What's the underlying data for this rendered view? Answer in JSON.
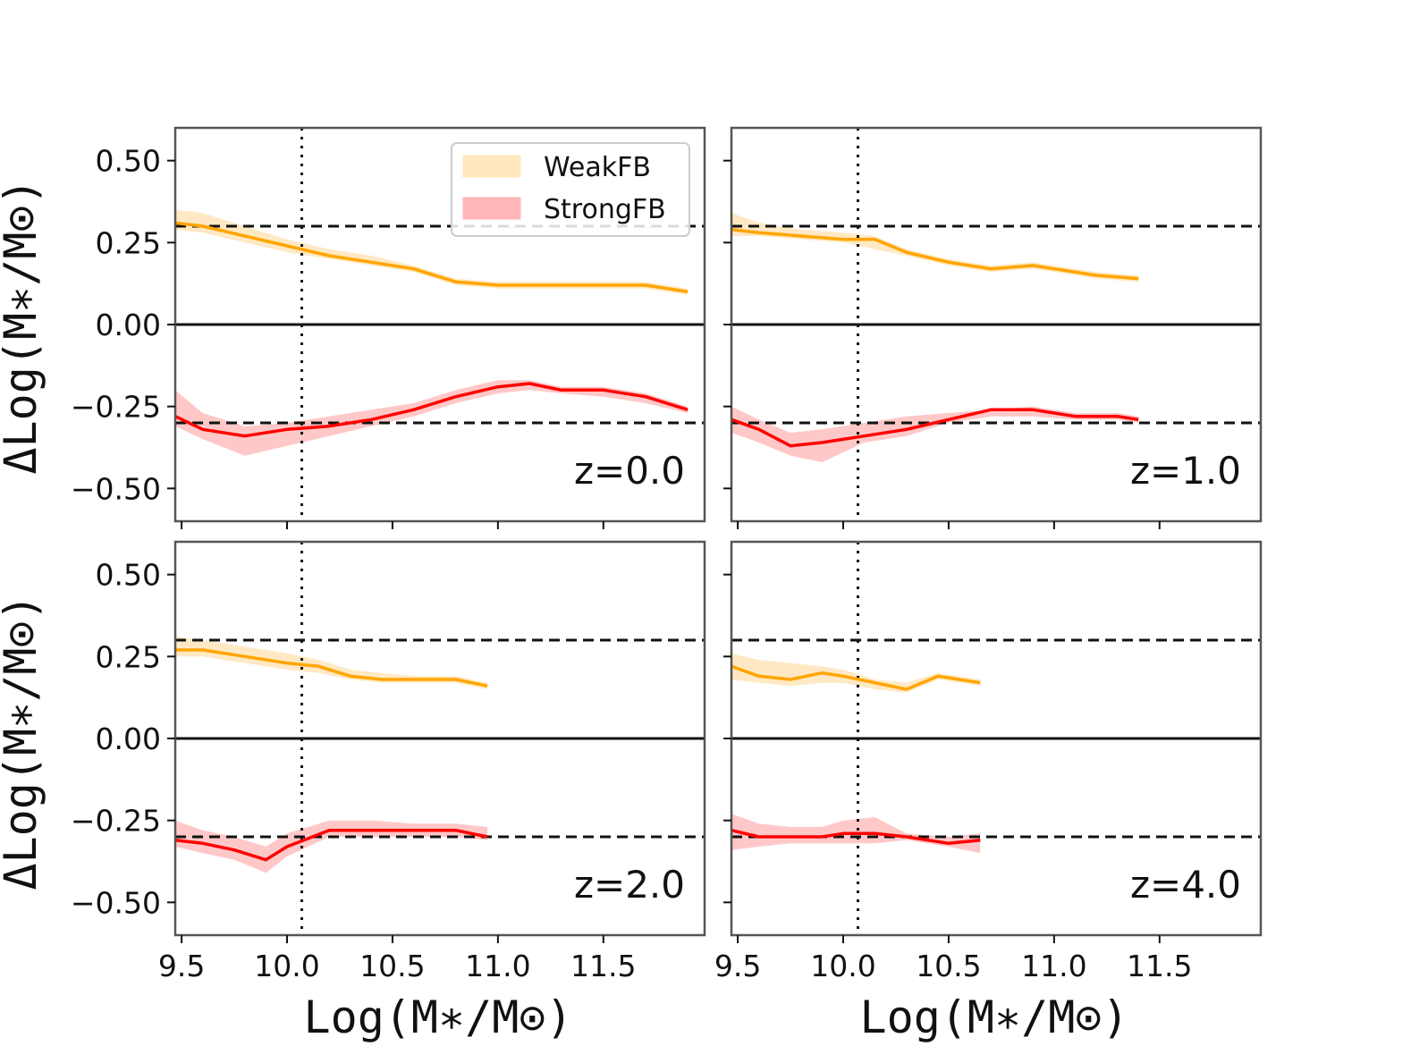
{
  "figure": {
    "ylabel": "ΔLog(M∗/M⊙)",
    "xlabel": "Log(M∗/M⊙)",
    "colors": {
      "weak_line": "#FFA500",
      "weak_band": "#FFE7BE",
      "strong_line": "#FF0000",
      "strong_band": "#FFB6B6"
    },
    "legend": {
      "entries": [
        "WeakFB",
        "StrongFB"
      ],
      "placement": "top-right of first panel"
    }
  },
  "chart_data": [
    {
      "type": "line",
      "annotation": "z=0.0",
      "xlim": [
        9.47,
        11.98
      ],
      "ylim": [
        -0.6,
        0.6
      ],
      "xticks": [
        "9.5",
        "10.0",
        "10.5",
        "11.0",
        "11.5"
      ],
      "yticks": [
        "0.50",
        "0.25",
        "0.00",
        "−0.25",
        "−0.50"
      ],
      "hlines": [
        0.3,
        0.0,
        -0.3
      ],
      "vline": 10.07,
      "series": [
        {
          "name": "WeakFB",
          "x": [
            9.47,
            9.6,
            9.8,
            10.0,
            10.2,
            10.4,
            10.6,
            10.8,
            11.0,
            11.2,
            11.4,
            11.6,
            11.7,
            11.9
          ],
          "y": [
            0.31,
            0.3,
            0.27,
            0.24,
            0.21,
            0.19,
            0.17,
            0.13,
            0.12,
            0.12,
            0.12,
            0.12,
            0.12,
            0.1
          ],
          "lower": [
            0.29,
            0.28,
            0.25,
            0.22,
            0.2,
            0.18,
            0.16,
            0.12,
            0.11,
            0.11,
            0.11,
            0.11,
            0.11,
            0.09
          ],
          "upper": [
            0.35,
            0.34,
            0.3,
            0.26,
            0.23,
            0.21,
            0.18,
            0.14,
            0.13,
            0.13,
            0.13,
            0.13,
            0.13,
            0.11
          ]
        },
        {
          "name": "StrongFB",
          "x": [
            9.47,
            9.6,
            9.8,
            10.0,
            10.2,
            10.4,
            10.6,
            10.8,
            11.0,
            11.15,
            11.3,
            11.5,
            11.7,
            11.9
          ],
          "y": [
            -0.28,
            -0.32,
            -0.34,
            -0.32,
            -0.31,
            -0.29,
            -0.26,
            -0.22,
            -0.19,
            -0.18,
            -0.2,
            -0.2,
            -0.22,
            -0.26
          ],
          "lower": [
            -0.31,
            -0.35,
            -0.4,
            -0.37,
            -0.34,
            -0.31,
            -0.28,
            -0.24,
            -0.21,
            -0.2,
            -0.21,
            -0.22,
            -0.24,
            -0.27
          ],
          "upper": [
            -0.2,
            -0.27,
            -0.31,
            -0.3,
            -0.28,
            -0.26,
            -0.24,
            -0.2,
            -0.17,
            -0.17,
            -0.19,
            -0.19,
            -0.21,
            -0.25
          ]
        }
      ]
    },
    {
      "type": "line",
      "annotation": "z=1.0",
      "xlim": [
        9.47,
        11.98
      ],
      "ylim": [
        -0.6,
        0.6
      ],
      "xticks": [
        "9.5",
        "10.0",
        "10.5",
        "11.0",
        "11.5"
      ],
      "yticks": [],
      "hlines": [
        0.3,
        0.0,
        -0.3
      ],
      "vline": 10.07,
      "series": [
        {
          "name": "WeakFB",
          "x": [
            9.47,
            9.6,
            9.8,
            10.0,
            10.15,
            10.3,
            10.5,
            10.7,
            10.9,
            11.0,
            11.2,
            11.4
          ],
          "y": [
            0.29,
            0.28,
            0.27,
            0.26,
            0.26,
            0.22,
            0.19,
            0.17,
            0.18,
            0.17,
            0.15,
            0.14
          ],
          "lower": [
            0.27,
            0.27,
            0.26,
            0.25,
            0.23,
            0.21,
            0.18,
            0.16,
            0.17,
            0.16,
            0.14,
            0.13
          ],
          "upper": [
            0.34,
            0.31,
            0.29,
            0.28,
            0.27,
            0.23,
            0.2,
            0.18,
            0.19,
            0.18,
            0.16,
            0.15
          ]
        },
        {
          "name": "StrongFB",
          "x": [
            9.47,
            9.6,
            9.75,
            9.9,
            10.1,
            10.3,
            10.5,
            10.7,
            10.9,
            11.1,
            11.3,
            11.4
          ],
          "y": [
            -0.29,
            -0.32,
            -0.37,
            -0.36,
            -0.34,
            -0.32,
            -0.29,
            -0.26,
            -0.26,
            -0.28,
            -0.28,
            -0.29
          ],
          "lower": [
            -0.33,
            -0.36,
            -0.4,
            -0.42,
            -0.36,
            -0.34,
            -0.3,
            -0.28,
            -0.28,
            -0.29,
            -0.29,
            -0.3
          ],
          "upper": [
            -0.25,
            -0.29,
            -0.33,
            -0.32,
            -0.3,
            -0.28,
            -0.27,
            -0.26,
            -0.25,
            -0.27,
            -0.27,
            -0.28
          ]
        }
      ]
    },
    {
      "type": "line",
      "annotation": "z=2.0",
      "xlim": [
        9.47,
        11.98
      ],
      "ylim": [
        -0.6,
        0.6
      ],
      "xticks": [
        "9.5",
        "10.0",
        "10.5",
        "11.0",
        "11.5"
      ],
      "yticks": [
        "0.50",
        "0.25",
        "0.00",
        "−0.25",
        "−0.50"
      ],
      "hlines": [
        0.3,
        0.0,
        -0.3
      ],
      "vline": 10.07,
      "series": [
        {
          "name": "WeakFB",
          "x": [
            9.47,
            9.6,
            9.8,
            10.0,
            10.15,
            10.3,
            10.45,
            10.6,
            10.8,
            10.95
          ],
          "y": [
            0.27,
            0.27,
            0.25,
            0.23,
            0.22,
            0.19,
            0.18,
            0.18,
            0.18,
            0.16
          ],
          "lower": [
            0.25,
            0.25,
            0.23,
            0.21,
            0.2,
            0.18,
            0.17,
            0.17,
            0.17,
            0.15
          ],
          "upper": [
            0.31,
            0.3,
            0.28,
            0.26,
            0.24,
            0.21,
            0.2,
            0.19,
            0.19,
            0.17
          ]
        },
        {
          "name": "StrongFB",
          "x": [
            9.47,
            9.6,
            9.75,
            9.9,
            10.0,
            10.2,
            10.4,
            10.6,
            10.8,
            10.95
          ],
          "y": [
            -0.31,
            -0.32,
            -0.34,
            -0.37,
            -0.33,
            -0.28,
            -0.28,
            -0.28,
            -0.28,
            -0.3
          ],
          "lower": [
            -0.33,
            -0.35,
            -0.37,
            -0.41,
            -0.36,
            -0.3,
            -0.3,
            -0.3,
            -0.3,
            -0.31
          ],
          "upper": [
            -0.25,
            -0.28,
            -0.3,
            -0.33,
            -0.29,
            -0.25,
            -0.25,
            -0.26,
            -0.26,
            -0.27
          ]
        }
      ]
    },
    {
      "type": "line",
      "annotation": "z=4.0",
      "xlim": [
        9.47,
        11.98
      ],
      "ylim": [
        -0.6,
        0.6
      ],
      "xticks": [
        "9.5",
        "10.0",
        "10.5",
        "11.0",
        "11.5"
      ],
      "yticks": [],
      "hlines": [
        0.3,
        0.0,
        -0.3
      ],
      "vline": 10.07,
      "series": [
        {
          "name": "WeakFB",
          "x": [
            9.47,
            9.6,
            9.75,
            9.9,
            10.0,
            10.15,
            10.3,
            10.45,
            10.65
          ],
          "y": [
            0.22,
            0.19,
            0.18,
            0.2,
            0.19,
            0.17,
            0.15,
            0.19,
            0.17
          ],
          "lower": [
            0.18,
            0.17,
            0.16,
            0.17,
            0.17,
            0.15,
            0.14,
            0.18,
            0.16
          ],
          "upper": [
            0.26,
            0.24,
            0.23,
            0.22,
            0.21,
            0.18,
            0.17,
            0.2,
            0.18
          ]
        },
        {
          "name": "StrongFB",
          "x": [
            9.47,
            9.6,
            9.75,
            9.9,
            10.0,
            10.15,
            10.3,
            10.5,
            10.65
          ],
          "y": [
            -0.28,
            -0.3,
            -0.3,
            -0.3,
            -0.29,
            -0.29,
            -0.3,
            -0.32,
            -0.31
          ],
          "lower": [
            -0.34,
            -0.33,
            -0.32,
            -0.32,
            -0.32,
            -0.32,
            -0.31,
            -0.33,
            -0.35
          ],
          "upper": [
            -0.23,
            -0.26,
            -0.27,
            -0.27,
            -0.25,
            -0.24,
            -0.29,
            -0.3,
            -0.29
          ]
        }
      ]
    }
  ]
}
